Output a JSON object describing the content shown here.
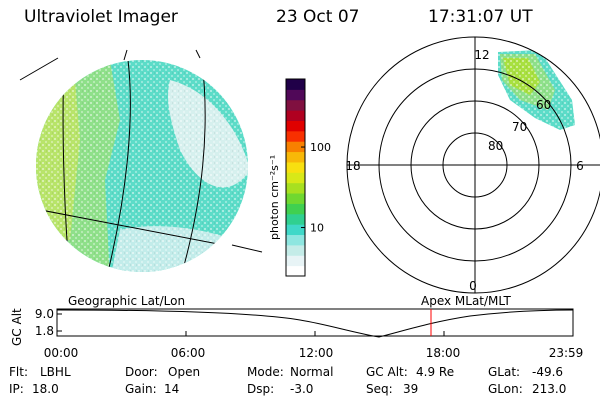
{
  "header": {
    "title": "Ultraviolet Imager",
    "date": "23 Oct 07",
    "time": "17:31:07 UT"
  },
  "colorbar": {
    "unit_label": "photon cm⁻²s⁻¹",
    "ticks": [
      {
        "label": "100",
        "value": 100
      },
      {
        "label": "10",
        "value": 10
      }
    ],
    "colors": [
      "#ffffff",
      "#e8f4f6",
      "#c4ece8",
      "#8ee6e0",
      "#40d8c8",
      "#30d090",
      "#40d050",
      "#70d830",
      "#a8e020",
      "#d8e818",
      "#f8e010",
      "#f8b808",
      "#f88000",
      "#f83000",
      "#e00000",
      "#b00020",
      "#801040",
      "#500858",
      "#200048"
    ]
  },
  "polar": {
    "clock_labels": [
      {
        "label": "12",
        "angle": 0
      },
      {
        "label": "6",
        "angle": 90
      },
      {
        "label": "0",
        "angle": 180
      },
      {
        "label": "18",
        "angle": 270
      }
    ],
    "lat_labels": [
      {
        "label": "80"
      },
      {
        "label": "70"
      },
      {
        "label": "60"
      }
    ]
  },
  "altitude_plot": {
    "left_label": "Geographic Lat/Lon",
    "right_label": "Apex MLat/MLT",
    "ylabel": "GC Alt",
    "yticks": [
      "9.0",
      "1.8"
    ],
    "xticks": [
      "00:00",
      "06:00",
      "12:00",
      "18:00",
      "23:59"
    ],
    "current_time_marker": "17:31",
    "marker_color": "#ff0000"
  },
  "info": {
    "row1": [
      {
        "key": "Flt:",
        "value": "LBHL"
      },
      {
        "key": "Door:",
        "value": "Open"
      },
      {
        "key": "Mode:",
        "value": "Normal"
      },
      {
        "key": "GC Alt:",
        "value": "4.9 Re"
      },
      {
        "key": "GLat:",
        "value": "-49.6"
      }
    ],
    "row2": [
      {
        "key": "IP:",
        "value": "18.0"
      },
      {
        "key": "Gain:",
        "value": "14"
      },
      {
        "key": "Dsp:",
        "value": "-3.0"
      },
      {
        "key": "Seq:",
        "value": "39"
      },
      {
        "key": "GLon:",
        "value": "213.0"
      }
    ]
  }
}
